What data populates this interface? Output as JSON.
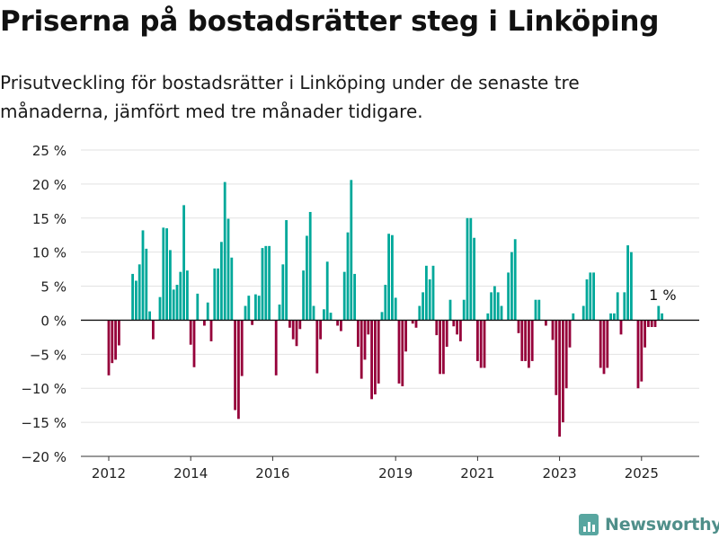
{
  "header": {
    "title": "Priserna på bostadsrätter steg i Linköping",
    "subtitle": "Prisutveckling för bostadsrätter i Linköping under de senaste tre månaderna, jämfört med tre månader tidigare."
  },
  "brand": {
    "name": "Newsworthy",
    "icon": "bar-chart-logo-icon",
    "color": "#4f8f8a"
  },
  "chart_data": {
    "type": "bar",
    "title": "Priserna på bostadsrätter steg i Linköping",
    "subtitle": "Prisutveckling för bostadsrätter i Linköping under de senaste tre månaderna, jämfört med tre månader tidigare.",
    "x_unit": "month",
    "x_start": "2012-01",
    "y_unit": "%",
    "ylim": [
      -20,
      25
    ],
    "y_ticks": [
      -20,
      -15,
      -10,
      -5,
      0,
      5,
      10,
      15,
      20,
      25
    ],
    "y_tick_labels": [
      "−20 %",
      "−15 %",
      "−10 %",
      "−5 %",
      "0 %",
      "5 %",
      "10 %",
      "15 %",
      "20 %",
      "25 %"
    ],
    "x_tick_years": [
      2012,
      2014,
      2016,
      2019,
      2021,
      2023,
      2025
    ],
    "x_tick_labels": [
      "2012",
      "2014",
      "2016",
      "2019",
      "2021",
      "2023",
      "2025"
    ],
    "grid": true,
    "positive_color": "#00a89a",
    "negative_color": "#96003a",
    "annotation": {
      "text": "1 %",
      "target": "last"
    },
    "values": [
      -8.1,
      -6.3,
      -5.8,
      -3.7,
      0,
      0,
      0,
      6.8,
      5.8,
      8.2,
      13.2,
      10.5,
      1.3,
      -2.8,
      0,
      3.4,
      13.6,
      13.5,
      10.3,
      4.5,
      5.2,
      7.1,
      16.9,
      7.3,
      -3.6,
      -6.9,
      3.9,
      0,
      -0.8,
      2.6,
      -3.1,
      7.6,
      7.6,
      11.5,
      20.3,
      14.9,
      9.2,
      -13.2,
      -14.5,
      -8.2,
      2.1,
      3.6,
      -0.7,
      3.8,
      3.6,
      10.6,
      10.9,
      10.9,
      0,
      -8.1,
      2.3,
      8.2,
      14.7,
      -1.1,
      -2.8,
      -3.8,
      -1.3,
      7.3,
      12.4,
      15.9,
      2.1,
      -7.8,
      -2.8,
      1.6,
      8.6,
      1.1,
      0,
      -0.8,
      -1.6,
      7.1,
      12.9,
      20.6,
      6.8,
      -3.9,
      -8.6,
      -5.8,
      -2.1,
      -11.6,
      -10.9,
      -9.3,
      1.2,
      5.2,
      12.7,
      12.5,
      3.3,
      -9.3,
      -9.7,
      -4.6,
      0,
      -0.5,
      -1.1,
      2.1,
      4.1,
      8.0,
      6.0,
      8.0,
      -2.2,
      -7.9,
      -7.9,
      -3.9,
      3.0,
      -0.9,
      -2.1,
      -3.1,
      3.0,
      15.0,
      15.0,
      12.1,
      -6.0,
      -7.0,
      -7.0,
      1.0,
      4.1,
      5.0,
      4.1,
      2.1,
      0,
      7.0,
      10.0,
      11.9,
      -1.9,
      -6.0,
      -6.0,
      -7.0,
      -6.0,
      3.0,
      3.0,
      0,
      -0.8,
      0,
      -2.9,
      -11.0,
      -17.1,
      -15.0,
      -10.0,
      -4.0,
      1.0,
      0,
      0,
      2.1,
      6.0,
      7.0,
      7.0,
      0,
      -7.0,
      -7.9,
      -7.0,
      1.0,
      1.0,
      4.1,
      -2.1,
      4.1,
      11.0,
      10.0,
      0,
      -10.0,
      -9.0,
      -4.0,
      -1.0,
      -1.0,
      -1.0,
      2.1,
      1.0
    ]
  }
}
